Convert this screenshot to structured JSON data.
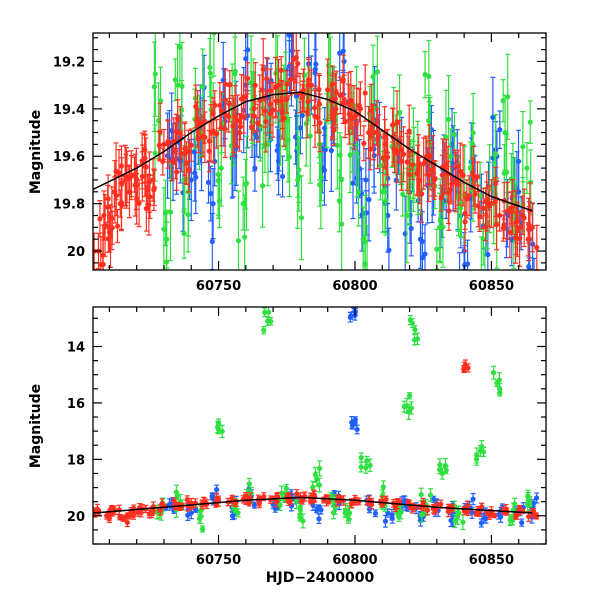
{
  "chart_data": [
    {
      "type": "scatter",
      "title": "",
      "xlabel": "",
      "ylabel": "Magnitude",
      "xlim": [
        60704,
        60870
      ],
      "ylim": [
        20.08,
        19.08
      ],
      "y_inverted": true,
      "x_ticks": [
        "60750",
        "60800",
        "60850"
      ],
      "x_tick_values": [
        60750,
        60800,
        60850
      ],
      "y_ticks": [
        "19.2",
        "19.4",
        "19.6",
        "19.8",
        "20"
      ],
      "y_tick_values": [
        19.2,
        19.4,
        19.6,
        19.8,
        20.0
      ],
      "model_curve": {
        "color": "#000000",
        "x": [
          60704,
          60720,
          60730,
          60740,
          60750,
          60760,
          60770,
          60780,
          60790,
          60800,
          60810,
          60820,
          60830,
          60840,
          60850,
          60860,
          60865
        ],
        "y": [
          19.74,
          19.65,
          19.58,
          19.5,
          19.43,
          19.37,
          19.34,
          19.33,
          19.36,
          19.41,
          19.49,
          19.57,
          19.64,
          19.71,
          19.77,
          19.81,
          19.83
        ]
      },
      "series": [
        {
          "color": "#2060ff",
          "scatter": 0.18,
          "err": 0.12,
          "points": [
            [
              60732,
              19.55
            ],
            [
              60736,
              19.62
            ],
            [
              60740,
              19.7
            ],
            [
              60744,
              19.45
            ],
            [
              60748,
              19.8
            ],
            [
              60752,
              19.38
            ],
            [
              60756,
              19.6
            ],
            [
              60760,
              19.3
            ],
            [
              60764,
              19.52
            ],
            [
              60768,
              19.35
            ],
            [
              60772,
              19.62
            ],
            [
              60776,
              19.22
            ],
            [
              60780,
              19.48
            ],
            [
              60784,
              19.3
            ],
            [
              60788,
              19.65
            ],
            [
              60792,
              19.42
            ],
            [
              60796,
              19.2
            ],
            [
              60800,
              19.55
            ],
            [
              60804,
              19.7
            ],
            [
              60808,
              19.45
            ],
            [
              60812,
              19.85
            ],
            [
              60816,
              19.6
            ],
            [
              60820,
              19.75
            ],
            [
              60824,
              19.95
            ],
            [
              60828,
              19.55
            ],
            [
              60832,
              19.8
            ],
            [
              60836,
              19.65
            ],
            [
              60840,
              20.0
            ],
            [
              60844,
              19.7
            ],
            [
              60848,
              19.9
            ],
            [
              60852,
              19.6
            ],
            [
              60856,
              19.85
            ],
            [
              60860,
              19.75
            ],
            [
              60864,
              19.95
            ]
          ]
        },
        {
          "color": "#30e040",
          "scatter": 0.2,
          "err": 0.14,
          "points": [
            [
              60728,
              19.45
            ],
            [
              60731,
              19.95
            ],
            [
              60735,
              19.3
            ],
            [
              60739,
              19.75
            ],
            [
              60743,
              19.5
            ],
            [
              60747,
              19.25
            ],
            [
              60751,
              19.65
            ],
            [
              60755,
              19.4
            ],
            [
              60759,
              19.8
            ],
            [
              60763,
              19.35
            ],
            [
              60767,
              19.55
            ],
            [
              60771,
              19.25
            ],
            [
              60775,
              19.45
            ],
            [
              60779,
              19.7
            ],
            [
              60783,
              19.35
            ],
            [
              60787,
              19.55
            ],
            [
              60791,
              19.28
            ],
            [
              60795,
              19.7
            ],
            [
              60799,
              19.5
            ],
            [
              60803,
              19.95
            ],
            [
              60807,
              19.4
            ],
            [
              60811,
              19.75
            ],
            [
              60815,
              19.55
            ],
            [
              60819,
              19.85
            ],
            [
              60823,
              19.65
            ],
            [
              60827,
              19.45
            ],
            [
              60831,
              19.9
            ],
            [
              60835,
              19.6
            ],
            [
              60839,
              19.8
            ],
            [
              60843,
              19.55
            ],
            [
              60847,
              19.95
            ],
            [
              60851,
              19.7
            ],
            [
              60855,
              19.5
            ],
            [
              60859,
              19.85
            ],
            [
              60863,
              19.65
            ]
          ]
        },
        {
          "color": "#ff3020",
          "scatter": 0.1,
          "err": 0.09,
          "points": [
            [
              60706,
              20.0
            ],
            [
              60708,
              19.85
            ],
            [
              60710,
              19.92
            ],
            [
              60712,
              19.75
            ],
            [
              60714,
              19.8
            ],
            [
              60716,
              19.7
            ],
            [
              60718,
              19.68
            ],
            [
              60720,
              19.78
            ],
            [
              60722,
              19.62
            ],
            [
              60724,
              19.74
            ],
            [
              60726,
              19.7
            ],
            [
              60730,
              19.55
            ],
            [
              60733,
              19.62
            ],
            [
              60736,
              19.5
            ],
            [
              60739,
              19.58
            ],
            [
              60742,
              19.45
            ],
            [
              60745,
              19.52
            ],
            [
              60748,
              19.42
            ],
            [
              60751,
              19.48
            ],
            [
              60754,
              19.38
            ],
            [
              60757,
              19.45
            ],
            [
              60760,
              19.35
            ],
            [
              60763,
              19.4
            ],
            [
              60766,
              19.32
            ],
            [
              60769,
              19.38
            ],
            [
              60772,
              19.3
            ],
            [
              60775,
              19.36
            ],
            [
              60778,
              19.28
            ],
            [
              60781,
              19.34
            ],
            [
              60784,
              19.3
            ],
            [
              60787,
              19.38
            ],
            [
              60790,
              19.32
            ],
            [
              60793,
              19.4
            ],
            [
              60796,
              19.36
            ],
            [
              60799,
              19.44
            ],
            [
              60802,
              19.4
            ],
            [
              60805,
              19.5
            ],
            [
              60808,
              19.46
            ],
            [
              60811,
              19.55
            ],
            [
              60814,
              19.52
            ],
            [
              60817,
              19.62
            ],
            [
              60820,
              19.58
            ],
            [
              60823,
              19.66
            ],
            [
              60826,
              19.62
            ],
            [
              60829,
              19.7
            ],
            [
              60832,
              19.68
            ],
            [
              60835,
              19.74
            ],
            [
              60838,
              19.72
            ],
            [
              60841,
              19.78
            ],
            [
              60844,
              19.76
            ],
            [
              60847,
              19.82
            ],
            [
              60850,
              19.8
            ],
            [
              60853,
              19.85
            ],
            [
              60856,
              19.83
            ],
            [
              60859,
              19.88
            ],
            [
              60862,
              19.86
            ],
            [
              60865,
              19.9
            ]
          ]
        }
      ]
    },
    {
      "type": "scatter",
      "title": "",
      "xlabel": "HJD−2400000",
      "ylabel": "Magnitude",
      "xlim": [
        60704,
        60870
      ],
      "ylim": [
        21.0,
        12.6
      ],
      "y_inverted": true,
      "x_ticks": [
        "60750",
        "60800",
        "60850"
      ],
      "x_tick_values": [
        60750,
        60800,
        60850
      ],
      "y_ticks": [
        "14",
        "16",
        "18",
        "20"
      ],
      "y_tick_values": [
        14,
        16,
        18,
        20
      ],
      "model_curve": {
        "color": "#000000",
        "x": [
          60704,
          60730,
          60760,
          60780,
          60800,
          60830,
          60865
        ],
        "y": [
          19.9,
          19.7,
          19.45,
          19.35,
          19.45,
          19.7,
          19.9
        ]
      },
      "series": [
        {
          "color": "#2060ff",
          "scatter": 0.35,
          "err": 0.15,
          "points": [
            [
              60732,
              19.6
            ],
            [
              60740,
              19.9
            ],
            [
              60748,
              19.4
            ],
            [
              60755,
              19.7
            ],
            [
              60762,
              19.3
            ],
            [
              60770,
              19.6
            ],
            [
              60778,
              19.4
            ],
            [
              60786,
              19.8
            ],
            [
              60794,
              19.3
            ],
            [
              60800,
              16.7
            ],
            [
              60800,
              12.9
            ],
            [
              60806,
              19.6
            ],
            [
              60812,
              19.9
            ],
            [
              60818,
              19.5
            ],
            [
              60824,
              20.0
            ],
            [
              60830,
              19.6
            ],
            [
              60836,
              19.9
            ],
            [
              60842,
              19.7
            ],
            [
              60848,
              20.1
            ],
            [
              60854,
              19.8
            ],
            [
              60860,
              19.9
            ],
            [
              60865,
              19.7
            ]
          ]
        },
        {
          "color": "#30e040",
          "scatter": 0.4,
          "err": 0.18,
          "points": [
            [
              60729,
              19.9
            ],
            [
              60736,
              19.5
            ],
            [
              60743,
              20.1
            ],
            [
              60750,
              16.7
            ],
            [
              60756,
              19.6
            ],
            [
              60762,
              19.2
            ],
            [
              60768,
              13.1
            ],
            [
              60774,
              19.4
            ],
            [
              60780,
              19.8
            ],
            [
              60786,
              18.7
            ],
            [
              60792,
              19.5
            ],
            [
              60798,
              19.9
            ],
            [
              60804,
              18.3
            ],
            [
              60810,
              19.3
            ],
            [
              60816,
              19.7
            ],
            [
              60819,
              16.1
            ],
            [
              60822,
              13.4
            ],
            [
              60826,
              19.6
            ],
            [
              60832,
              18.5
            ],
            [
              60838,
              19.9
            ],
            [
              60846,
              17.7
            ],
            [
              60852,
              15.3
            ],
            [
              60858,
              19.8
            ],
            [
              60864,
              19.5
            ]
          ]
        },
        {
          "color": "#ff3020",
          "scatter": 0.15,
          "err": 0.12,
          "points": [
            [
              60706,
              19.9
            ],
            [
              60709,
              20.0
            ],
            [
              60712,
              19.8
            ],
            [
              60715,
              20.1
            ],
            [
              60718,
              19.85
            ],
            [
              60722,
              19.75
            ],
            [
              60726,
              19.8
            ],
            [
              60730,
              19.65
            ],
            [
              60735,
              19.6
            ],
            [
              60740,
              19.55
            ],
            [
              60745,
              19.5
            ],
            [
              60750,
              19.48
            ],
            [
              60755,
              19.45
            ],
            [
              60760,
              19.42
            ],
            [
              60765,
              19.4
            ],
            [
              60770,
              19.38
            ],
            [
              60775,
              19.36
            ],
            [
              60780,
              19.35
            ],
            [
              60785,
              19.37
            ],
            [
              60790,
              19.4
            ],
            [
              60795,
              19.42
            ],
            [
              60800,
              19.45
            ],
            [
              60805,
              19.5
            ],
            [
              60810,
              19.55
            ],
            [
              60815,
              19.58
            ],
            [
              60820,
              19.62
            ],
            [
              60825,
              19.66
            ],
            [
              60830,
              19.7
            ],
            [
              60835,
              19.74
            ],
            [
              60840,
              14.8
            ],
            [
              60840,
              19.78
            ],
            [
              60845,
              19.8
            ],
            [
              60850,
              19.84
            ],
            [
              60855,
              19.86
            ],
            [
              60860,
              19.88
            ],
            [
              60865,
              19.9
            ]
          ]
        }
      ]
    }
  ]
}
